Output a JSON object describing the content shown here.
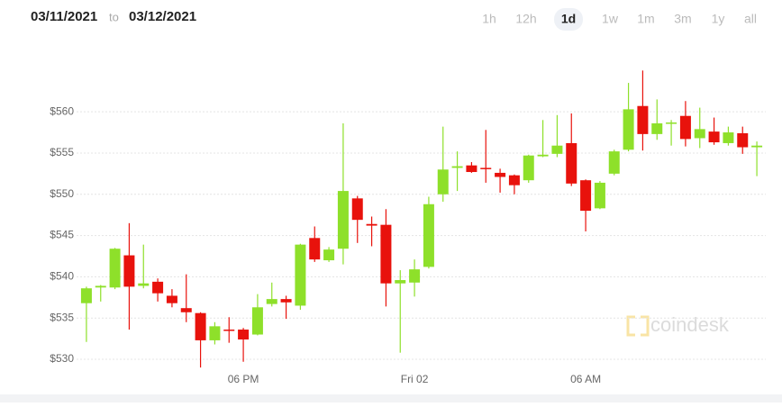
{
  "header": {
    "from": "03/11/2021",
    "to_word": "to",
    "to": "03/12/2021",
    "ranges": [
      "1h",
      "12h",
      "1d",
      "1w",
      "1m",
      "3m",
      "1y",
      "all"
    ],
    "selected": 2
  },
  "watermark": "coindesk",
  "chart_data": {
    "type": "candlestick",
    "categories": [
      null,
      null,
      null,
      null,
      null,
      null,
      null,
      null,
      null,
      null,
      null,
      "06 PM",
      null,
      null,
      null,
      null,
      null,
      null,
      null,
      null,
      null,
      null,
      null,
      "Fri 02",
      null,
      null,
      null,
      null,
      null,
      null,
      null,
      null,
      null,
      null,
      null,
      "06 AM",
      null,
      null,
      null,
      null,
      null,
      null,
      null,
      null,
      null,
      null,
      null,
      null
    ],
    "open": [
      536.8,
      538.7,
      538.7,
      542.6,
      538.9,
      539.4,
      537.7,
      536.2,
      535.6,
      532.3,
      533.6,
      533.6,
      533.0,
      536.7,
      537.3,
      536.5,
      544.7,
      542.0,
      543.4,
      549.5,
      546.4,
      546.3,
      539.2,
      539.3,
      541.2,
      550.0,
      553.2,
      553.5,
      553.2,
      552.6,
      552.3,
      551.7,
      554.6,
      554.9,
      556.2,
      551.7,
      548.3,
      552.5,
      555.4,
      560.7,
      557.3,
      558.6,
      559.5,
      556.8,
      557.6,
      556.2,
      557.4,
      555.7
    ],
    "high": [
      538.8,
      539.0,
      543.5,
      546.5,
      543.9,
      539.8,
      538.5,
      540.3,
      535.7,
      534.5,
      535.1,
      533.8,
      537.9,
      539.3,
      537.7,
      544.0,
      546.1,
      543.6,
      558.6,
      549.8,
      547.3,
      548.2,
      540.8,
      542.1,
      549.7,
      558.2,
      555.2,
      553.9,
      557.8,
      553.1,
      552.4,
      554.8,
      559.0,
      559.6,
      559.8,
      551.8,
      551.6,
      555.4,
      563.5,
      565.0,
      561.5,
      559.0,
      561.3,
      560.5,
      559.3,
      558.2,
      558.2,
      556.4
    ],
    "low": [
      532.1,
      537.0,
      538.5,
      533.6,
      538.6,
      537.0,
      536.3,
      534.5,
      529.0,
      531.8,
      532.0,
      529.7,
      532.9,
      536.4,
      534.9,
      536.0,
      541.8,
      541.8,
      541.5,
      544.1,
      543.7,
      536.4,
      530.8,
      537.6,
      541.0,
      549.1,
      550.4,
      552.6,
      551.4,
      550.2,
      550.0,
      551.4,
      554.5,
      554.5,
      551.0,
      545.5,
      548.2,
      552.3,
      555.2,
      555.3,
      556.6,
      555.9,
      555.8,
      555.6,
      556.0,
      555.9,
      554.9,
      552.2
    ],
    "close": [
      538.6,
      538.9,
      543.4,
      538.8,
      539.2,
      538.0,
      536.8,
      535.7,
      532.3,
      534.0,
      533.5,
      532.4,
      536.3,
      537.3,
      536.9,
      543.9,
      542.1,
      543.3,
      550.4,
      546.9,
      546.2,
      539.2,
      539.6,
      540.9,
      548.8,
      553.0,
      553.4,
      552.7,
      553.1,
      552.1,
      551.1,
      554.7,
      554.8,
      555.9,
      551.3,
      548.0,
      551.4,
      555.2,
      560.3,
      557.3,
      558.6,
      558.7,
      556.7,
      557.9,
      556.3,
      557.5,
      555.7,
      555.9
    ],
    "up_color": "#8ee02a",
    "down_color": "#e8120c",
    "ylim": [
      528.8,
      567
    ],
    "yticks": [
      {
        "value": 530,
        "label": "$530"
      },
      {
        "value": 535,
        "label": "$535"
      },
      {
        "value": 540,
        "label": "$540"
      },
      {
        "value": 545,
        "label": "$545"
      },
      {
        "value": 550,
        "label": "$550"
      },
      {
        "value": 555,
        "label": "$555"
      },
      {
        "value": 560,
        "label": "$560"
      }
    ],
    "grid": true
  }
}
